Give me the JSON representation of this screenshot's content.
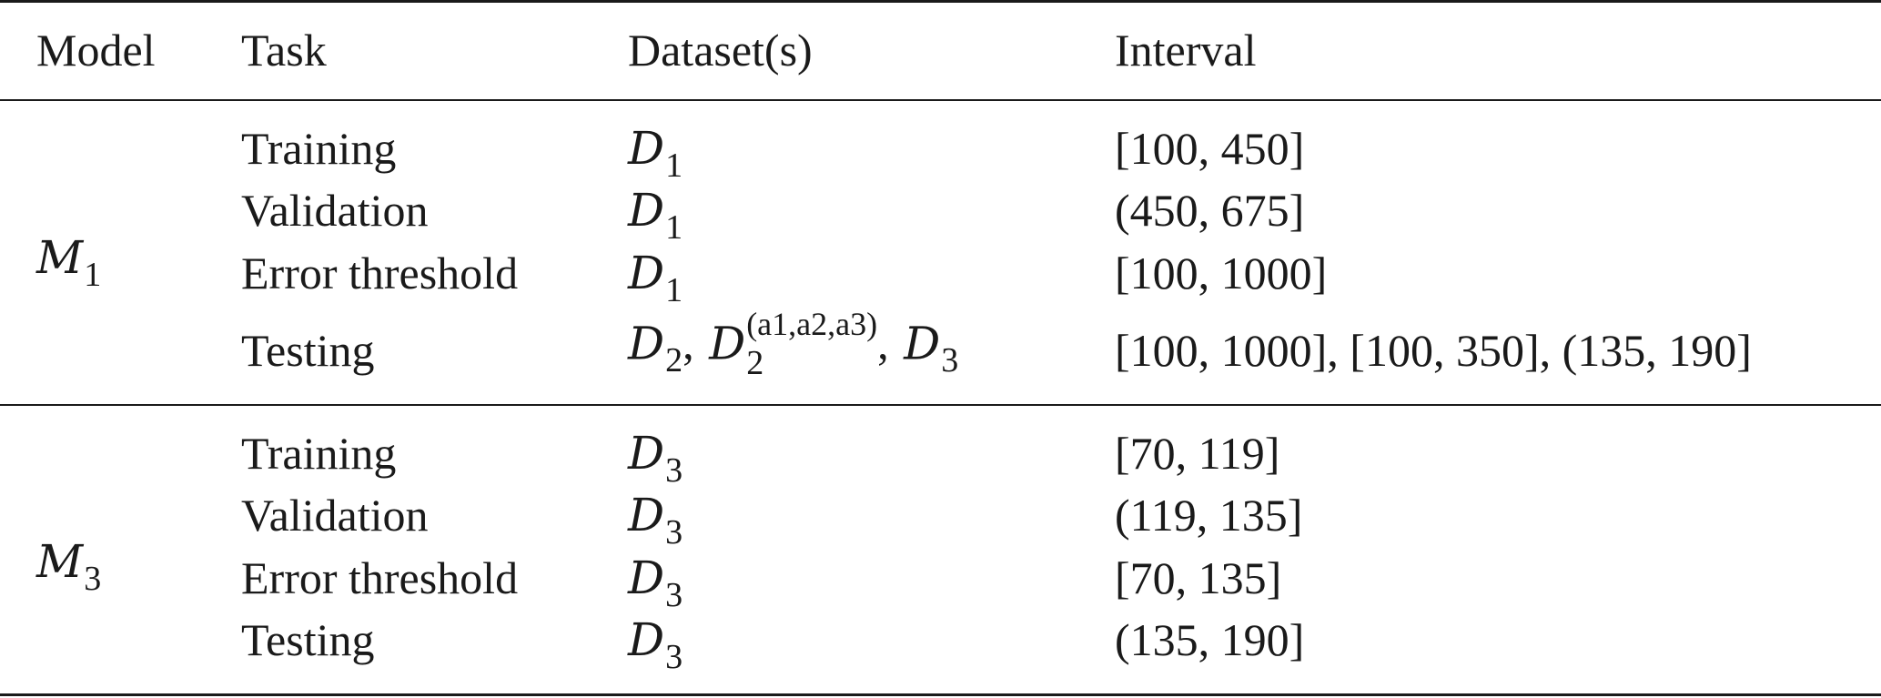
{
  "header": {
    "model": "Model",
    "task": "Task",
    "datasets": "Dataset(s)",
    "interval": "Interval"
  },
  "groups": [
    {
      "model_letter": "M",
      "model_sub": "1",
      "rows": [
        {
          "task": "Training",
          "dataset": [
            {
              "letter": "D",
              "sub": "1"
            }
          ],
          "interval": "[100, 450]"
        },
        {
          "task": "Validation",
          "dataset": [
            {
              "letter": "D",
              "sub": "1"
            }
          ],
          "interval": "(450, 675]"
        },
        {
          "task": "Error threshold",
          "dataset": [
            {
              "letter": "D",
              "sub": "1"
            }
          ],
          "interval": "[100, 1000]"
        },
        {
          "task": "Testing",
          "dataset": [
            {
              "letter": "D",
              "sub": "2",
              "sep": ","
            },
            {
              "letter": "D",
              "sub": "2",
              "sup": "(a1,a2,a3)",
              "sep": ","
            },
            {
              "letter": "D",
              "sub": "3"
            }
          ],
          "interval": "[100, 1000], [100, 350], (135, 190]"
        }
      ]
    },
    {
      "model_letter": "M",
      "model_sub": "3",
      "rows": [
        {
          "task": "Training",
          "dataset": [
            {
              "letter": "D",
              "sub": "3"
            }
          ],
          "interval": "[70, 119]"
        },
        {
          "task": "Validation",
          "dataset": [
            {
              "letter": "D",
              "sub": "3"
            }
          ],
          "interval": "(119, 135]"
        },
        {
          "task": "Error threshold",
          "dataset": [
            {
              "letter": "D",
              "sub": "3"
            }
          ],
          "interval": "[70, 135]"
        },
        {
          "task": "Testing",
          "dataset": [
            {
              "letter": "D",
              "sub": "3"
            }
          ],
          "interval": "(135, 190]"
        }
      ]
    }
  ]
}
